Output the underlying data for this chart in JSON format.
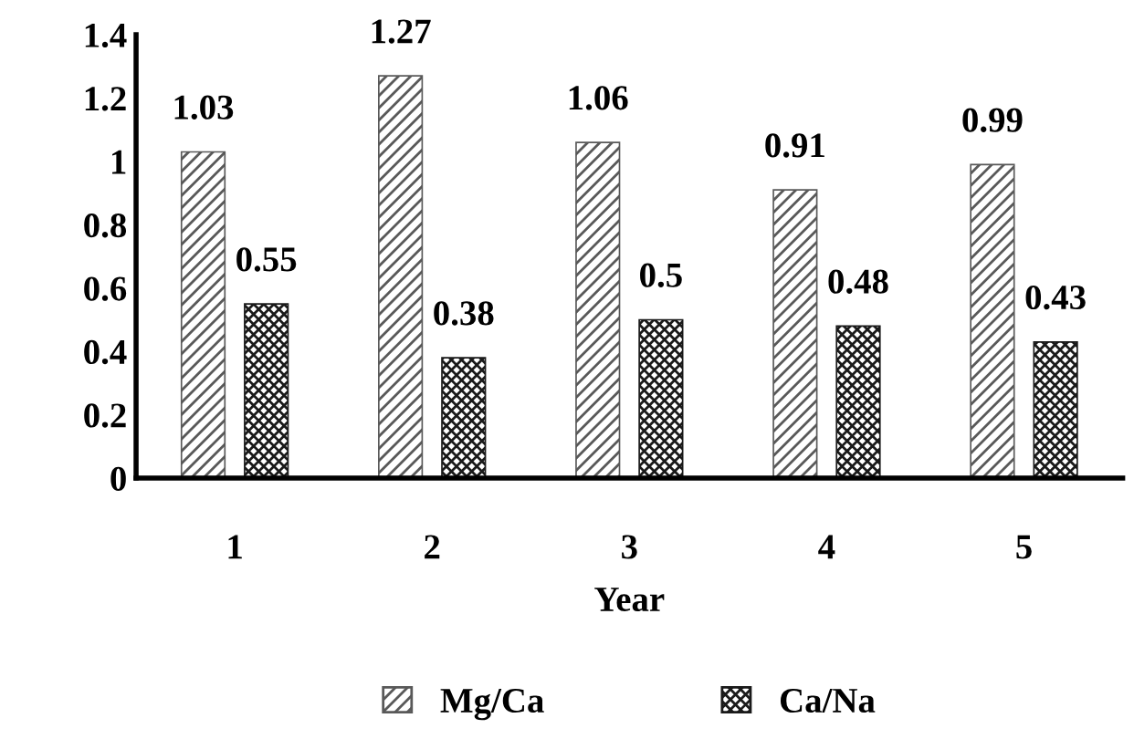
{
  "chart_data": {
    "type": "bar",
    "xlabel": "Year",
    "categories": [
      "1",
      "2",
      "3",
      "4",
      "5"
    ],
    "series": [
      {
        "name": "Mg/Ca",
        "color": "#595959",
        "values": [
          1.03,
          1.27,
          1.06,
          0.91,
          0.99
        ]
      },
      {
        "name": "Ca/Na",
        "color": "#1a1a1a",
        "values": [
          0.55,
          0.38,
          0.5,
          0.48,
          0.43
        ]
      }
    ],
    "ylim": [
      0,
      1.4
    ],
    "yticks": [
      0,
      0.2,
      0.4,
      0.6,
      0.8,
      1,
      1.2,
      1.4
    ],
    "data_labels": true,
    "grid": false,
    "legend": "bottom"
  }
}
